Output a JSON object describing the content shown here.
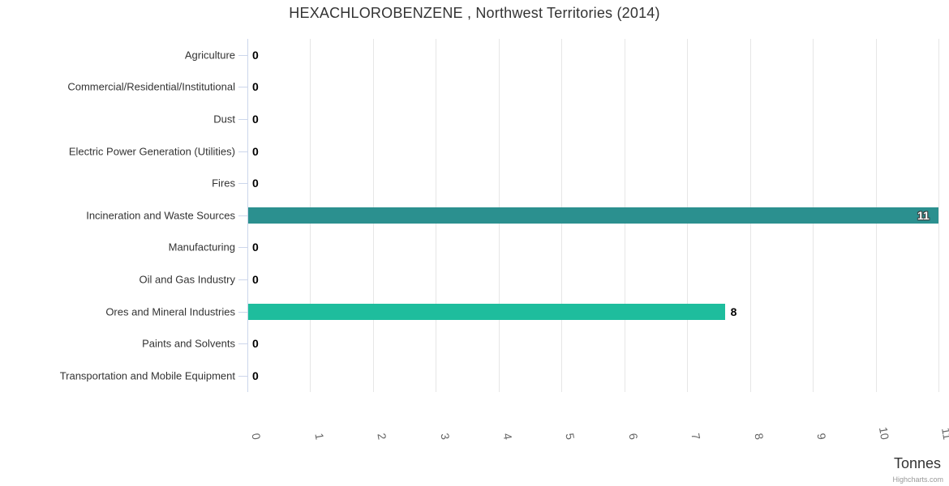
{
  "title": "HEXACHLOROBENZENE , Northwest Territories (2014)",
  "credit": "Highcharts.com",
  "axis": {
    "title": "Tonnes"
  },
  "colors": {
    "teal_bar": "#2b908f",
    "green_bar": "#1ebd9d",
    "gridline": "#e6e6e6",
    "axis_line": "#ccd6eb",
    "title_text": "#333333",
    "category_text": "#333333",
    "tick_text": "#666666",
    "data_label_text": "#000000",
    "inside_label_text": "#ffffff",
    "credit_text": "#999999"
  },
  "chart_data": {
    "type": "bar",
    "orientation": "horizontal",
    "title": "HEXACHLOROBENZENE , Northwest Territories (2014)",
    "categories": [
      "Agriculture",
      "Commercial/Residential/Institutional",
      "Dust",
      "Electric Power Generation (Utilities)",
      "Fires",
      "Incineration and Waste Sources",
      "Manufacturing",
      "Oil and Gas Industry",
      "Ores and Mineral Industries",
      "Paints and Solvents",
      "Transportation and Mobile Equipment"
    ],
    "values": [
      0,
      0,
      0,
      0,
      0,
      11,
      0,
      0,
      7.6,
      0,
      0
    ],
    "data_labels": [
      "0",
      "0",
      "0",
      "0",
      "0",
      "11",
      "0",
      "0",
      "8",
      "0",
      "0"
    ],
    "point_colors": [
      "#2b908f",
      "#2b908f",
      "#2b908f",
      "#2b908f",
      "#2b908f",
      "#2b908f",
      "#2b908f",
      "#2b908f",
      "#1ebd9d",
      "#2b908f",
      "#2b908f"
    ],
    "xlabel": "Tonnes",
    "ylabel": "",
    "xlim": [
      0,
      11
    ],
    "xticks": [
      "0",
      "1",
      "2",
      "3",
      "4",
      "5",
      "6",
      "7",
      "8",
      "9",
      "10",
      "11"
    ],
    "grid": true,
    "legend": false
  }
}
